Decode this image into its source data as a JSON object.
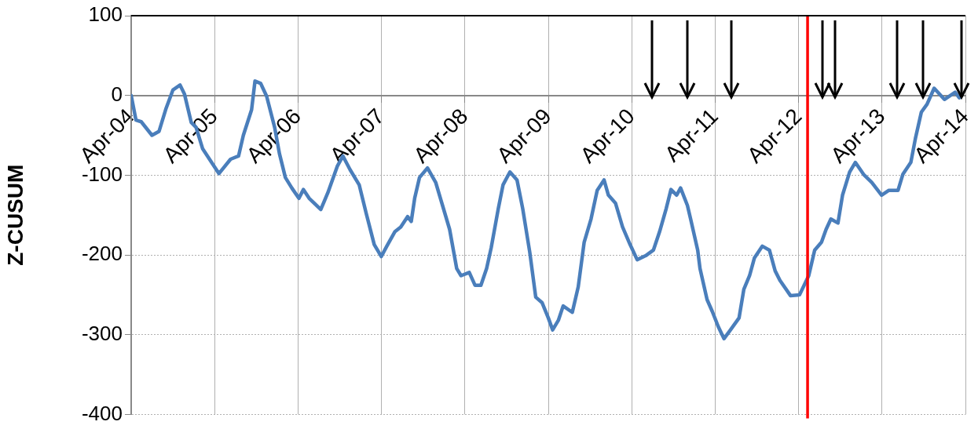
{
  "chart_data": {
    "type": "line",
    "ylabel": "Z-CUSUM",
    "xlim": [
      "2004-04-01",
      "2014-04-01"
    ],
    "ylim": [
      -400,
      100
    ],
    "yticks": [
      -400,
      -300,
      -200,
      -100,
      0,
      100
    ],
    "xticks": [
      {
        "value": "2004-04-01",
        "label": "Apr-04"
      },
      {
        "value": "2005-04-01",
        "label": "Apr-05"
      },
      {
        "value": "2006-04-01",
        "label": "Apr-06"
      },
      {
        "value": "2007-04-01",
        "label": "Apr-07"
      },
      {
        "value": "2008-04-01",
        "label": "Apr-08"
      },
      {
        "value": "2009-04-01",
        "label": "Apr-09"
      },
      {
        "value": "2010-04-01",
        "label": "Apr-10"
      },
      {
        "value": "2011-04-01",
        "label": "Apr-11"
      },
      {
        "value": "2012-04-01",
        "label": "Apr-12"
      },
      {
        "value": "2013-04-01",
        "label": "Apr-13"
      },
      {
        "value": "2014-04-01",
        "label": "Apr-14"
      }
    ],
    "grid": true,
    "legend": false,
    "marker": "none",
    "line_style": "solid",
    "ref_lines": [
      {
        "axis": "x",
        "value": "2012-05-10",
        "color": "#ff0000"
      }
    ],
    "series": [
      {
        "color": "#4a7ebb",
        "x": [
          "2004-04-01",
          "2004-04-22",
          "2004-05-15",
          "2004-07-01",
          "2004-08-01",
          "2004-09-01",
          "2004-10-01",
          "2004-11-01",
          "2004-11-20",
          "2004-12-20",
          "2005-01-10",
          "2005-02-08",
          "2005-04-20",
          "2005-06-10",
          "2005-07-15",
          "2005-08-05",
          "2005-09-10",
          "2005-09-25",
          "2005-10-20",
          "2005-11-15",
          "2005-12-20",
          "2006-01-10",
          "2006-02-05",
          "2006-03-05",
          "2006-04-05",
          "2006-04-25",
          "2006-05-20",
          "2006-07-10",
          "2006-08-10",
          "2006-09-20",
          "2006-10-15",
          "2006-11-15",
          "2006-12-25",
          "2007-01-25",
          "2007-03-01",
          "2007-04-01",
          "2007-04-25",
          "2007-05-30",
          "2007-06-25",
          "2007-07-25",
          "2007-08-10",
          "2007-08-25",
          "2007-09-15",
          "2007-10-20",
          "2007-11-25",
          "2007-12-25",
          "2008-01-25",
          "2008-02-25",
          "2008-03-15",
          "2008-04-20",
          "2008-05-15",
          "2008-06-10",
          "2008-07-05",
          "2008-07-25",
          "2008-08-25",
          "2008-09-15",
          "2008-10-15",
          "2008-11-15",
          "2008-12-10",
          "2009-01-10",
          "2009-02-05",
          "2009-03-05",
          "2009-04-01",
          "2009-04-20",
          "2009-05-15",
          "2009-06-05",
          "2009-07-15",
          "2009-08-10",
          "2009-09-05",
          "2009-10-05",
          "2009-11-01",
          "2009-12-01",
          "2009-12-20",
          "2010-01-20",
          "2010-02-20",
          "2010-03-25",
          "2010-04-25",
          "2010-06-01",
          "2010-07-05",
          "2010-08-01",
          "2010-08-30",
          "2010-09-20",
          "2010-10-15",
          "2010-11-01",
          "2010-12-01",
          "2010-12-15",
          "2011-01-15",
          "2011-01-25",
          "2011-02-25",
          "2011-03-20",
          "2011-04-15",
          "2011-05-10",
          "2011-06-05",
          "2011-07-15",
          "2011-08-05",
          "2011-08-30",
          "2011-09-20",
          "2011-10-25",
          "2011-11-25",
          "2011-12-20",
          "2012-01-10",
          "2012-02-25",
          "2012-04-05",
          "2012-05-15",
          "2012-06-10",
          "2012-07-10",
          "2012-07-30",
          "2012-08-20",
          "2012-09-20",
          "2012-10-10",
          "2012-11-10",
          "2012-12-05",
          "2013-01-10",
          "2013-02-15",
          "2013-03-30",
          "2013-05-01",
          "2013-06-10",
          "2013-07-01",
          "2013-08-05",
          "2013-08-25",
          "2013-09-20",
          "2013-10-15",
          "2013-11-15",
          "2013-12-30",
          "2014-02-15",
          "2014-03-05"
        ],
        "values": [
          0,
          -31,
          -33,
          -50,
          -45,
          -16,
          7,
          13,
          2,
          -34,
          -40,
          -67,
          -98,
          -80,
          -76,
          -50,
          -18,
          18,
          15,
          -1,
          -40,
          -73,
          -103,
          -116,
          -129,
          -118,
          -129,
          -143,
          -122,
          -89,
          -76,
          -93,
          -112,
          -148,
          -187,
          -202,
          -189,
          -171,
          -165,
          -152,
          -158,
          -129,
          -103,
          -91,
          -109,
          -138,
          -168,
          -217,
          -226,
          -222,
          -238,
          -238,
          -217,
          -191,
          -142,
          -112,
          -96,
          -106,
          -142,
          -197,
          -253,
          -260,
          -279,
          -294,
          -282,
          -264,
          -272,
          -240,
          -184,
          -155,
          -119,
          -106,
          -125,
          -135,
          -165,
          -187,
          -206,
          -201,
          -194,
          -171,
          -142,
          -118,
          -125,
          -116,
          -138,
          -155,
          -194,
          -217,
          -256,
          -271,
          -290,
          -305,
          -295,
          -279,
          -243,
          -226,
          -204,
          -189,
          -194,
          -220,
          -232,
          -251,
          -250,
          -226,
          -194,
          -184,
          -168,
          -155,
          -160,
          -125,
          -96,
          -84,
          -99,
          -109,
          -125,
          -119,
          -119,
          -99,
          -84,
          -54,
          -21,
          -11,
          9,
          -5,
          4,
          -3
        ]
      }
    ]
  }
}
